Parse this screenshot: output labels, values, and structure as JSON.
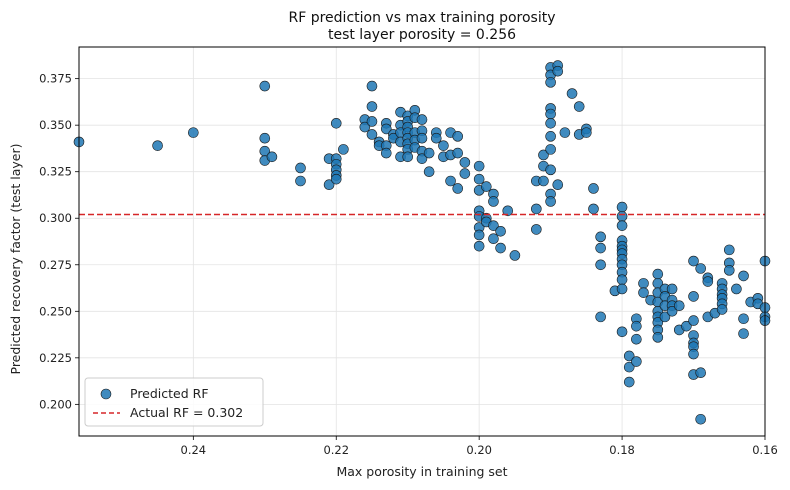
{
  "chart_data": {
    "type": "scatter",
    "title": "RF prediction vs max training porosity",
    "subtitle": "test layer porosity = 0.256",
    "xlabel": "Max porosity in training set",
    "ylabel": "Predicted recovery factor (test layer)",
    "x_inverted": true,
    "xlim": [
      0.256,
      0.16
    ],
    "ylim": [
      0.183,
      0.392
    ],
    "x_ticks": [
      0.24,
      0.22,
      0.2,
      0.18,
      0.16
    ],
    "x_tick_labels": [
      "0.24",
      "0.22",
      "0.20",
      "0.18",
      "0.16"
    ],
    "y_ticks": [
      0.2,
      0.225,
      0.25,
      0.275,
      0.3,
      0.325,
      0.35,
      0.375
    ],
    "y_tick_labels": [
      "0.200",
      "0.225",
      "0.250",
      "0.275",
      "0.300",
      "0.325",
      "0.350",
      "0.375"
    ],
    "grid": true,
    "legend_position": "lower-left",
    "series": [
      {
        "name": "Predicted RF",
        "kind": "scatter",
        "color": "#1f77b4",
        "points": [
          [
            0.256,
            0.341
          ],
          [
            0.245,
            0.339
          ],
          [
            0.24,
            0.346
          ],
          [
            0.23,
            0.371
          ],
          [
            0.23,
            0.343
          ],
          [
            0.23,
            0.336
          ],
          [
            0.23,
            0.331
          ],
          [
            0.229,
            0.333
          ],
          [
            0.225,
            0.327
          ],
          [
            0.225,
            0.32
          ],
          [
            0.221,
            0.332
          ],
          [
            0.221,
            0.318
          ],
          [
            0.22,
            0.351
          ],
          [
            0.22,
            0.332
          ],
          [
            0.22,
            0.329
          ],
          [
            0.22,
            0.326
          ],
          [
            0.22,
            0.323
          ],
          [
            0.22,
            0.321
          ],
          [
            0.219,
            0.337
          ],
          [
            0.216,
            0.353
          ],
          [
            0.216,
            0.349
          ],
          [
            0.215,
            0.371
          ],
          [
            0.215,
            0.36
          ],
          [
            0.215,
            0.352
          ],
          [
            0.215,
            0.345
          ],
          [
            0.214,
            0.341
          ],
          [
            0.214,
            0.339
          ],
          [
            0.213,
            0.351
          ],
          [
            0.213,
            0.348
          ],
          [
            0.213,
            0.339
          ],
          [
            0.213,
            0.335
          ],
          [
            0.212,
            0.345
          ],
          [
            0.212,
            0.343
          ],
          [
            0.211,
            0.357
          ],
          [
            0.211,
            0.35
          ],
          [
            0.211,
            0.346
          ],
          [
            0.211,
            0.341
          ],
          [
            0.211,
            0.333
          ],
          [
            0.21,
            0.355
          ],
          [
            0.21,
            0.352
          ],
          [
            0.21,
            0.349
          ],
          [
            0.21,
            0.346
          ],
          [
            0.21,
            0.343
          ],
          [
            0.21,
            0.34
          ],
          [
            0.21,
            0.337
          ],
          [
            0.21,
            0.333
          ],
          [
            0.209,
            0.358
          ],
          [
            0.209,
            0.354
          ],
          [
            0.209,
            0.346
          ],
          [
            0.209,
            0.342
          ],
          [
            0.209,
            0.338
          ],
          [
            0.208,
            0.353
          ],
          [
            0.208,
            0.347
          ],
          [
            0.208,
            0.343
          ],
          [
            0.208,
            0.336
          ],
          [
            0.208,
            0.332
          ],
          [
            0.207,
            0.335
          ],
          [
            0.207,
            0.325
          ],
          [
            0.206,
            0.346
          ],
          [
            0.206,
            0.343
          ],
          [
            0.205,
            0.339
          ],
          [
            0.205,
            0.333
          ],
          [
            0.204,
            0.346
          ],
          [
            0.204,
            0.334
          ],
          [
            0.204,
            0.32
          ],
          [
            0.203,
            0.344
          ],
          [
            0.203,
            0.335
          ],
          [
            0.203,
            0.316
          ],
          [
            0.202,
            0.33
          ],
          [
            0.202,
            0.324
          ],
          [
            0.2,
            0.328
          ],
          [
            0.2,
            0.321
          ],
          [
            0.2,
            0.315
          ],
          [
            0.2,
            0.304
          ],
          [
            0.2,
            0.301
          ],
          [
            0.2,
            0.295
          ],
          [
            0.2,
            0.291
          ],
          [
            0.2,
            0.285
          ],
          [
            0.199,
            0.317
          ],
          [
            0.199,
            0.3
          ],
          [
            0.199,
            0.298
          ],
          [
            0.198,
            0.313
          ],
          [
            0.198,
            0.309
          ],
          [
            0.198,
            0.296
          ],
          [
            0.198,
            0.289
          ],
          [
            0.197,
            0.293
          ],
          [
            0.197,
            0.284
          ],
          [
            0.196,
            0.304
          ],
          [
            0.195,
            0.28
          ],
          [
            0.192,
            0.32
          ],
          [
            0.192,
            0.305
          ],
          [
            0.192,
            0.294
          ],
          [
            0.191,
            0.334
          ],
          [
            0.191,
            0.328
          ],
          [
            0.191,
            0.32
          ],
          [
            0.19,
            0.381
          ],
          [
            0.19,
            0.377
          ],
          [
            0.19,
            0.373
          ],
          [
            0.19,
            0.359
          ],
          [
            0.19,
            0.356
          ],
          [
            0.19,
            0.351
          ],
          [
            0.19,
            0.344
          ],
          [
            0.19,
            0.337
          ],
          [
            0.19,
            0.326
          ],
          [
            0.19,
            0.313
          ],
          [
            0.19,
            0.309
          ],
          [
            0.189,
            0.382
          ],
          [
            0.189,
            0.379
          ],
          [
            0.189,
            0.318
          ],
          [
            0.188,
            0.346
          ],
          [
            0.187,
            0.367
          ],
          [
            0.186,
            0.36
          ],
          [
            0.186,
            0.345
          ],
          [
            0.185,
            0.348
          ],
          [
            0.185,
            0.346
          ],
          [
            0.184,
            0.316
          ],
          [
            0.184,
            0.305
          ],
          [
            0.183,
            0.29
          ],
          [
            0.183,
            0.284
          ],
          [
            0.183,
            0.275
          ],
          [
            0.183,
            0.247
          ],
          [
            0.181,
            0.261
          ],
          [
            0.18,
            0.306
          ],
          [
            0.18,
            0.301
          ],
          [
            0.18,
            0.296
          ],
          [
            0.18,
            0.288
          ],
          [
            0.18,
            0.285
          ],
          [
            0.18,
            0.283
          ],
          [
            0.18,
            0.281
          ],
          [
            0.18,
            0.278
          ],
          [
            0.18,
            0.275
          ],
          [
            0.18,
            0.271
          ],
          [
            0.18,
            0.267
          ],
          [
            0.18,
            0.262
          ],
          [
            0.18,
            0.239
          ],
          [
            0.179,
            0.226
          ],
          [
            0.179,
            0.22
          ],
          [
            0.179,
            0.212
          ],
          [
            0.178,
            0.246
          ],
          [
            0.178,
            0.242
          ],
          [
            0.178,
            0.235
          ],
          [
            0.178,
            0.223
          ],
          [
            0.177,
            0.265
          ],
          [
            0.177,
            0.26
          ],
          [
            0.176,
            0.256
          ],
          [
            0.175,
            0.27
          ],
          [
            0.175,
            0.265
          ],
          [
            0.175,
            0.26
          ],
          [
            0.175,
            0.255
          ],
          [
            0.175,
            0.25
          ],
          [
            0.175,
            0.247
          ],
          [
            0.175,
            0.244
          ],
          [
            0.175,
            0.24
          ],
          [
            0.175,
            0.236
          ],
          [
            0.174,
            0.262
          ],
          [
            0.174,
            0.258
          ],
          [
            0.174,
            0.253
          ],
          [
            0.174,
            0.247
          ],
          [
            0.173,
            0.262
          ],
          [
            0.173,
            0.256
          ],
          [
            0.173,
            0.253
          ],
          [
            0.173,
            0.25
          ],
          [
            0.172,
            0.24
          ],
          [
            0.172,
            0.253
          ],
          [
            0.171,
            0.242
          ],
          [
            0.17,
            0.277
          ],
          [
            0.17,
            0.258
          ],
          [
            0.17,
            0.245
          ],
          [
            0.17,
            0.237
          ],
          [
            0.17,
            0.233
          ],
          [
            0.17,
            0.231
          ],
          [
            0.17,
            0.227
          ],
          [
            0.17,
            0.216
          ],
          [
            0.169,
            0.273
          ],
          [
            0.169,
            0.217
          ],
          [
            0.169,
            0.192
          ],
          [
            0.168,
            0.268
          ],
          [
            0.168,
            0.266
          ],
          [
            0.168,
            0.247
          ],
          [
            0.167,
            0.249
          ],
          [
            0.166,
            0.265
          ],
          [
            0.166,
            0.262
          ],
          [
            0.166,
            0.259
          ],
          [
            0.166,
            0.257
          ],
          [
            0.166,
            0.254
          ],
          [
            0.166,
            0.251
          ],
          [
            0.165,
            0.283
          ],
          [
            0.165,
            0.276
          ],
          [
            0.165,
            0.272
          ],
          [
            0.164,
            0.262
          ],
          [
            0.163,
            0.246
          ],
          [
            0.163,
            0.238
          ],
          [
            0.163,
            0.269
          ],
          [
            0.162,
            0.255
          ],
          [
            0.161,
            0.257
          ],
          [
            0.161,
            0.254
          ],
          [
            0.16,
            0.277
          ],
          [
            0.16,
            0.252
          ],
          [
            0.16,
            0.247
          ],
          [
            0.16,
            0.245
          ]
        ]
      },
      {
        "name": "Actual RF = 0.302",
        "kind": "hline",
        "y": 0.302,
        "color": "#d62728",
        "linestyle": "dashed"
      }
    ]
  }
}
